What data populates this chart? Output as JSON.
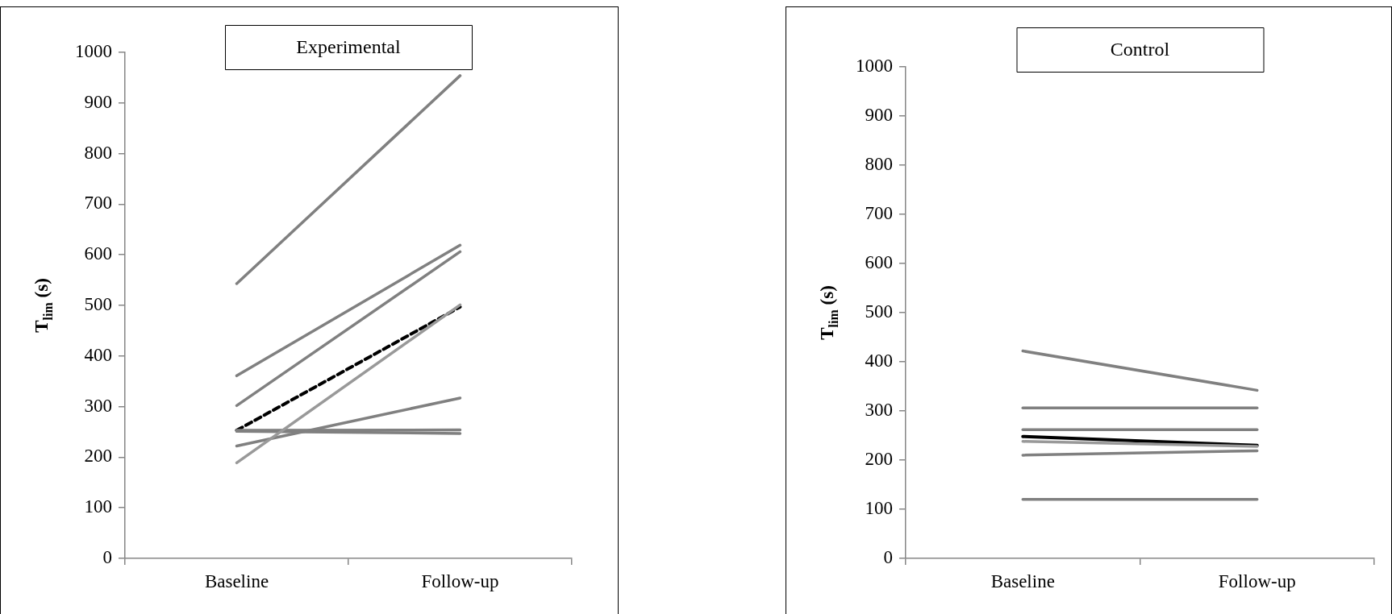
{
  "chart_data": [
    {
      "type": "line",
      "title": "Experimental",
      "ylabel": "T$_{lim}$ (s)",
      "categories": [
        "Baseline",
        "Follow-up"
      ],
      "ylim": [
        0,
        1000
      ],
      "yticks": [
        0,
        100,
        200,
        300,
        400,
        500,
        600,
        700,
        800,
        900,
        1000
      ],
      "grid": false,
      "legend": false,
      "marker": "none",
      "series": [
        {
          "color": "#808080",
          "values": [
            543,
            954
          ]
        },
        {
          "color": "#808080",
          "values": [
            361,
            619
          ]
        },
        {
          "color": "#808080",
          "values": [
            302,
            606
          ]
        },
        {
          "color": "#999999",
          "values": [
            189,
            501
          ]
        },
        {
          "color": "#808080",
          "values": [
            222,
            317
          ]
        },
        {
          "color": "#808080",
          "values": [
            253,
            254
          ]
        },
        {
          "color": "#808080",
          "values": [
            251,
            247
          ]
        },
        {
          "color": "#000000",
          "values": [
            253,
            497
          ],
          "line_style": "dashed"
        }
      ]
    },
    {
      "type": "line",
      "title": "Control",
      "ylabel": "T$_{lim}$ (s)",
      "categories": [
        "Baseline",
        "Follow-up"
      ],
      "ylim": [
        0,
        1000
      ],
      "yticks": [
        0,
        100,
        200,
        300,
        400,
        500,
        600,
        700,
        800,
        900,
        1000
      ],
      "grid": false,
      "legend": false,
      "marker": "none",
      "series": [
        {
          "color": "#808080",
          "values": [
            422,
            342
          ]
        },
        {
          "color": "#808080",
          "values": [
            306,
            306
          ]
        },
        {
          "color": "#808080",
          "values": [
            262,
            262
          ]
        },
        {
          "color": "#999999",
          "values": [
            238,
            228
          ]
        },
        {
          "color": "#808080",
          "values": [
            210,
            219
          ]
        },
        {
          "color": "#808080",
          "values": [
            120,
            120
          ]
        },
        {
          "color": "#000000",
          "values": [
            248,
            230
          ]
        }
      ]
    }
  ]
}
